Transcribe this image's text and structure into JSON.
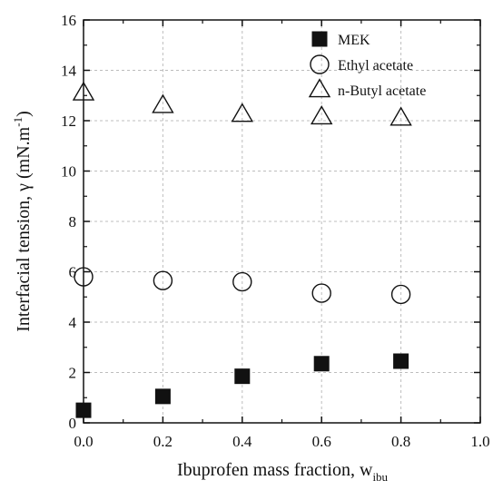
{
  "chart_data": {
    "type": "scatter",
    "xlabel": "Ibuprofen mass fraction, w",
    "xlabel_sub": "ibu",
    "ylabel": "Interfacial tension, γ  (mN.m",
    "ylabel_sup": "-1",
    "ylabel_end": ")",
    "xlim": [
      0.0,
      1.0
    ],
    "ylim": [
      0,
      16
    ],
    "xticks": [
      0.0,
      0.2,
      0.4,
      0.6,
      0.8,
      1.0
    ],
    "xtick_labels": [
      "0.0",
      "0.2",
      "0.4",
      "0.6",
      "0.8",
      "1.0"
    ],
    "yticks": [
      0,
      2,
      4,
      6,
      8,
      10,
      12,
      14,
      16
    ],
    "ytick_labels": [
      "0",
      "2",
      "4",
      "6",
      "8",
      "10",
      "12",
      "14",
      "16"
    ],
    "grid": true,
    "legend_position": "top-right",
    "series": [
      {
        "name": "MEK",
        "marker": "filled-square",
        "color": "#111111",
        "x": [
          0.0,
          0.2,
          0.4,
          0.6,
          0.8
        ],
        "y": [
          0.5,
          1.05,
          1.85,
          2.35,
          2.45
        ]
      },
      {
        "name": "Ethyl acetate",
        "marker": "open-circle",
        "color": "#111111",
        "x": [
          0.0,
          0.2,
          0.4,
          0.6,
          0.8
        ],
        "y": [
          5.8,
          5.65,
          5.6,
          5.15,
          5.1
        ]
      },
      {
        "name": "n-Butyl acetate",
        "marker": "open-triangle",
        "color": "#111111",
        "x": [
          0.0,
          0.2,
          0.4,
          0.6,
          0.8
        ],
        "y": [
          13.1,
          12.6,
          12.25,
          12.15,
          12.1
        ]
      }
    ]
  }
}
